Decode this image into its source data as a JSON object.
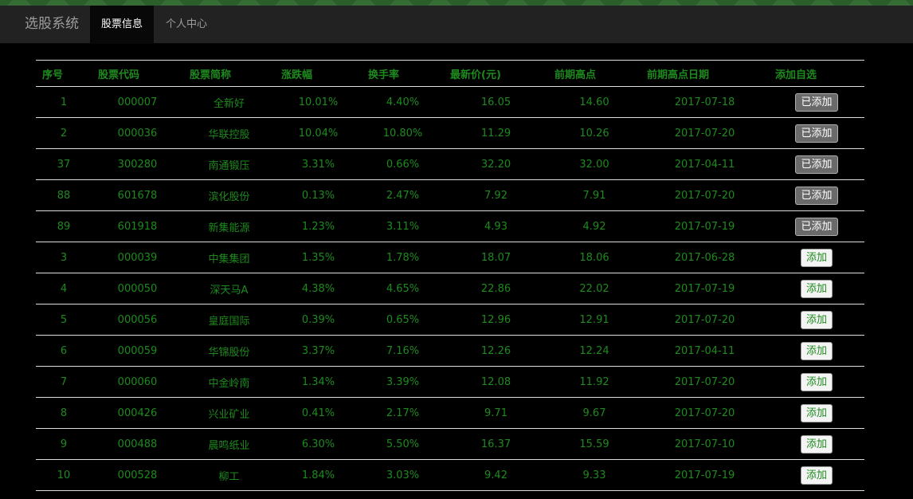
{
  "navbar": {
    "brand": "选股系统",
    "items": [
      {
        "label": "股票信息",
        "active": true
      },
      {
        "label": "个人中心",
        "active": false
      }
    ]
  },
  "table": {
    "headers": [
      "序号",
      "股票代码",
      "股票简称",
      "涨跌幅",
      "换手率",
      "最新价(元)",
      "前期高点",
      "前期高点日期",
      "添加自选"
    ],
    "rows": [
      {
        "no": "1",
        "code": "000007",
        "name": "全新好",
        "change": "10.01%",
        "turnover": "4.40%",
        "price": "16.05",
        "prev_high": "14.60",
        "prev_high_date": "2017-07-18",
        "action": "已添加",
        "added": true
      },
      {
        "no": "2",
        "code": "000036",
        "name": "华联控股",
        "change": "10.04%",
        "turnover": "10.80%",
        "price": "11.29",
        "prev_high": "10.26",
        "prev_high_date": "2017-07-20",
        "action": "已添加",
        "added": true
      },
      {
        "no": "37",
        "code": "300280",
        "name": "南通锻压",
        "change": "3.31%",
        "turnover": "0.66%",
        "price": "32.20",
        "prev_high": "32.00",
        "prev_high_date": "2017-04-11",
        "action": "已添加",
        "added": true
      },
      {
        "no": "88",
        "code": "601678",
        "name": "滨化股份",
        "change": "0.13%",
        "turnover": "2.47%",
        "price": "7.92",
        "prev_high": "7.91",
        "prev_high_date": "2017-07-20",
        "action": "已添加",
        "added": true
      },
      {
        "no": "89",
        "code": "601918",
        "name": "新集能源",
        "change": "1.23%",
        "turnover": "3.11%",
        "price": "4.93",
        "prev_high": "4.92",
        "prev_high_date": "2017-07-19",
        "action": "已添加",
        "added": true
      },
      {
        "no": "3",
        "code": "000039",
        "name": "中集集团",
        "change": "1.35%",
        "turnover": "1.78%",
        "price": "18.07",
        "prev_high": "18.06",
        "prev_high_date": "2017-06-28",
        "action": "添加",
        "added": false
      },
      {
        "no": "4",
        "code": "000050",
        "name": "深天马A",
        "change": "4.38%",
        "turnover": "4.65%",
        "price": "22.86",
        "prev_high": "22.02",
        "prev_high_date": "2017-07-19",
        "action": "添加",
        "added": false
      },
      {
        "no": "5",
        "code": "000056",
        "name": "皇庭国际",
        "change": "0.39%",
        "turnover": "0.65%",
        "price": "12.96",
        "prev_high": "12.91",
        "prev_high_date": "2017-07-20",
        "action": "添加",
        "added": false
      },
      {
        "no": "6",
        "code": "000059",
        "name": "华锦股份",
        "change": "3.37%",
        "turnover": "7.16%",
        "price": "12.26",
        "prev_high": "12.24",
        "prev_high_date": "2017-04-11",
        "action": "添加",
        "added": false
      },
      {
        "no": "7",
        "code": "000060",
        "name": "中金岭南",
        "change": "1.34%",
        "turnover": "3.39%",
        "price": "12.08",
        "prev_high": "11.92",
        "prev_high_date": "2017-07-20",
        "action": "添加",
        "added": false
      },
      {
        "no": "8",
        "code": "000426",
        "name": "兴业矿业",
        "change": "0.41%",
        "turnover": "2.17%",
        "price": "9.71",
        "prev_high": "9.67",
        "prev_high_date": "2017-07-20",
        "action": "添加",
        "added": false
      },
      {
        "no": "9",
        "code": "000488",
        "name": "晨鸣纸业",
        "change": "6.30%",
        "turnover": "5.50%",
        "price": "16.37",
        "prev_high": "15.59",
        "prev_high_date": "2017-07-10",
        "action": "添加",
        "added": false
      },
      {
        "no": "10",
        "code": "000528",
        "name": "柳工",
        "change": "1.84%",
        "turnover": "3.03%",
        "price": "9.42",
        "prev_high": "9.33",
        "prev_high_date": "2017-07-19",
        "action": "添加",
        "added": false
      }
    ]
  },
  "colors": {
    "text_green": "#1e8a1e",
    "navbar_bg": "#222222",
    "page_bg": "#000000"
  }
}
